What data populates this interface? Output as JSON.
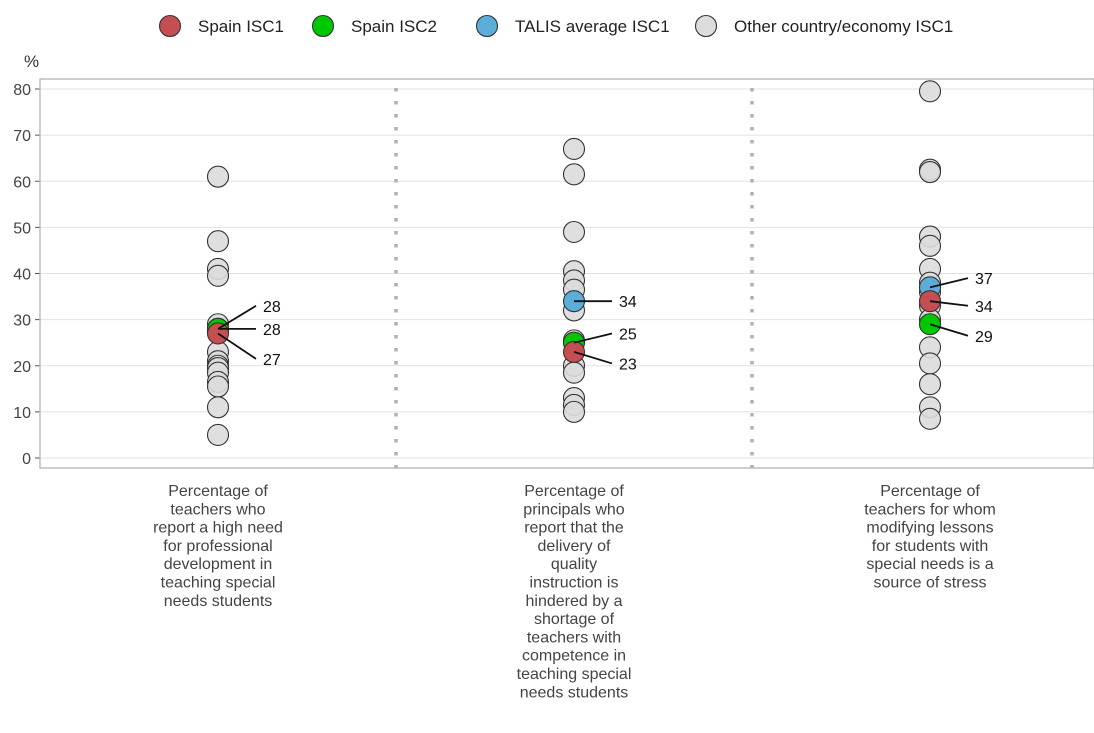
{
  "chart_data": {
    "type": "scatter",
    "y_unit_label": "%",
    "ylim": [
      0,
      80
    ],
    "yticks": [
      0,
      10,
      20,
      30,
      40,
      50,
      60,
      70,
      80
    ],
    "grid": true,
    "legend_position": "top",
    "legend": [
      {
        "name": "Spain ISC1",
        "color": "#c44e52"
      },
      {
        "name": "Spain ISC2",
        "color": "#00c800"
      },
      {
        "name": "TALIS average ISC1",
        "color": "#5aaed8"
      },
      {
        "name": "Other country/economy ISC1",
        "color": "#dcdcdc"
      }
    ],
    "categories": [
      "Percentage of teachers who report a high need for professional development in teaching special needs students",
      "Percentage of principals who report that the delivery of quality instruction is hindered by a shortage of teachers with competence in teaching special needs students",
      "Percentage of teachers for whom modifying lessons for students with special needs is a source of stress"
    ],
    "category_lines": [
      [
        "Percentage of",
        "teachers who",
        "report a high need",
        "for professional",
        "development in",
        "teaching special",
        "needs students"
      ],
      [
        "Percentage of",
        "principals who",
        "report that the",
        "delivery of",
        "quality",
        "instruction is",
        "hindered by a",
        "shortage of",
        "teachers with",
        "competence in",
        "teaching special",
        "needs students"
      ],
      [
        "Percentage of",
        "teachers for whom",
        "modifying lessons",
        "for students with",
        "special needs is a",
        "source of stress"
      ]
    ],
    "series": [
      {
        "name": "Other country/economy ISC1",
        "values": [
          [
            61,
            47,
            41,
            39.5,
            29,
            27.5,
            23,
            21,
            20,
            19.5,
            18.5,
            16.5,
            15.5,
            11,
            5
          ],
          [
            67,
            61.5,
            49,
            40.5,
            38.5,
            36.5,
            32,
            25.5,
            20,
            18.5,
            13,
            11.5,
            10
          ],
          [
            79.5,
            62.5,
            62,
            48,
            46,
            41,
            38,
            36,
            33,
            30,
            24,
            20.5,
            16,
            11,
            8.5
          ]
        ]
      },
      {
        "name": "TALIS average ISC1",
        "values": [
          28,
          34,
          37
        ]
      },
      {
        "name": "Spain ISC2",
        "values": [
          28,
          25,
          29
        ]
      },
      {
        "name": "Spain ISC1",
        "values": [
          27,
          23,
          34
        ]
      }
    ],
    "value_labels": [
      [
        {
          "text": "28",
          "value": 28,
          "label_y": 33
        },
        {
          "text": "28",
          "value": 28,
          "label_y": 28
        },
        {
          "text": "27",
          "value": 27,
          "label_y": 21.5
        }
      ],
      [
        {
          "text": "34",
          "value": 34,
          "label_y": 34
        },
        {
          "text": "25",
          "value": 25,
          "label_y": 27
        },
        {
          "text": "23",
          "value": 23,
          "label_y": 20.5
        }
      ],
      [
        {
          "text": "37",
          "value": 37,
          "label_y": 39
        },
        {
          "text": "34",
          "value": 34,
          "label_y": 33
        },
        {
          "text": "29",
          "value": 29,
          "label_y": 26.5
        }
      ]
    ]
  }
}
